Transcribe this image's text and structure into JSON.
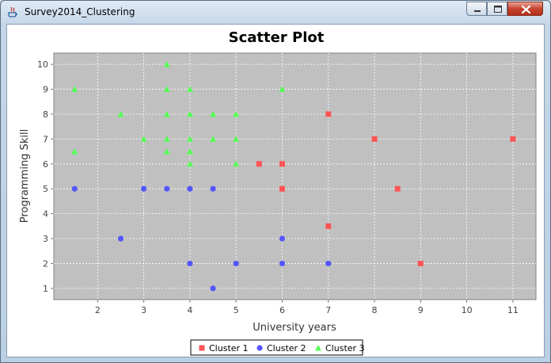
{
  "window": {
    "title": "Survey2014_Clustering"
  },
  "colors": {
    "plot_bg": "#c0c0c0",
    "gridline": "#ffffff",
    "cluster1": "#ff5555",
    "cluster2": "#5555ff",
    "cluster3": "#55ff55"
  },
  "chart_data": {
    "type": "scatter",
    "title": "Scatter Plot",
    "xlabel": "University years",
    "ylabel": "Programming Skill",
    "xlim": [
      1.05,
      11.5
    ],
    "ylim": [
      0.55,
      10.45
    ],
    "xticks": [
      2,
      3,
      4,
      5,
      6,
      7,
      8,
      9,
      10,
      11
    ],
    "yticks": [
      1,
      2,
      3,
      4,
      5,
      6,
      7,
      8,
      9,
      10
    ],
    "grid": true,
    "legend": "bottom-center",
    "series": [
      {
        "name": "Cluster 1",
        "marker": "square",
        "color": "#ff5555",
        "points": [
          [
            5.5,
            6
          ],
          [
            6,
            6
          ],
          [
            6,
            5
          ],
          [
            7,
            8
          ],
          [
            7,
            3.5
          ],
          [
            8,
            7
          ],
          [
            8.5,
            5
          ],
          [
            9,
            2
          ],
          [
            11,
            7
          ]
        ]
      },
      {
        "name": "Cluster 2",
        "marker": "circle",
        "color": "#5555ff",
        "points": [
          [
            1.5,
            5
          ],
          [
            2.5,
            3
          ],
          [
            3,
            5
          ],
          [
            3.5,
            5
          ],
          [
            4,
            5
          ],
          [
            4.5,
            5
          ],
          [
            4,
            2
          ],
          [
            4.5,
            1
          ],
          [
            5,
            2
          ],
          [
            6,
            3
          ],
          [
            6,
            2
          ],
          [
            7,
            2
          ]
        ]
      },
      {
        "name": "Cluster 3",
        "marker": "triangle",
        "color": "#55ff55",
        "points": [
          [
            1.5,
            9
          ],
          [
            1.5,
            6.5
          ],
          [
            2.5,
            8
          ],
          [
            3,
            7
          ],
          [
            3.5,
            10
          ],
          [
            3.5,
            9
          ],
          [
            3.5,
            8
          ],
          [
            3.5,
            7
          ],
          [
            3.5,
            6.5
          ],
          [
            4,
            9
          ],
          [
            4,
            8
          ],
          [
            4,
            7
          ],
          [
            4,
            6.5
          ],
          [
            4,
            6
          ],
          [
            4.5,
            8
          ],
          [
            4.5,
            7
          ],
          [
            5,
            8
          ],
          [
            5,
            7
          ],
          [
            5,
            6
          ],
          [
            6,
            9
          ]
        ]
      }
    ]
  }
}
